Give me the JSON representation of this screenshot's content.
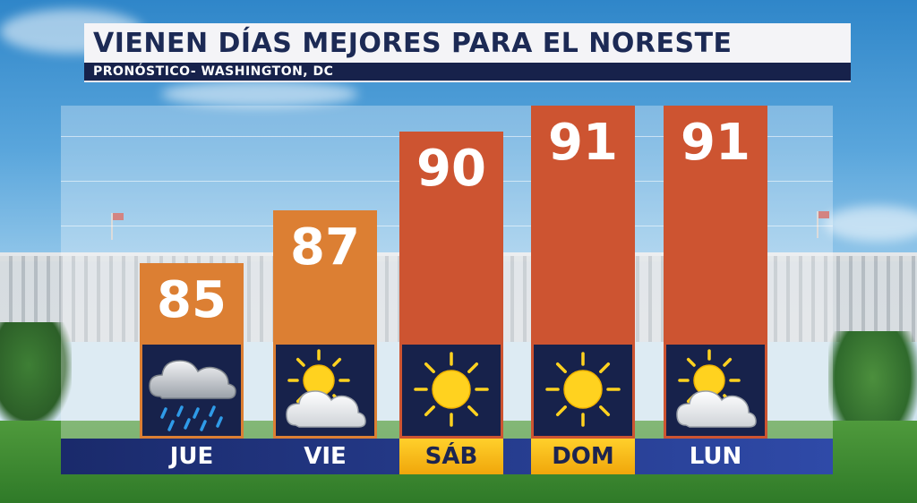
{
  "header": {
    "title": "VIENEN DÍAS MEJORES PARA EL NORESTE",
    "subtitle": "PRONÓSTICO- WASHINGTON, DC"
  },
  "colors": {
    "warm_bar": "#dc7f33",
    "hot_bar": "#cd5431",
    "navy": "#17224b",
    "weekend_highlight": "#f6b61a",
    "title_text": "#1c2a55"
  },
  "chart_data": {
    "type": "bar",
    "categories": [
      "JUE",
      "VIE",
      "SÁB",
      "DOM",
      "LUN"
    ],
    "values": [
      85,
      87,
      90,
      91,
      91
    ],
    "conditions": [
      "rain-cloud",
      "partly-sunny",
      "sunny",
      "sunny",
      "partly-sunny"
    ],
    "weekend": [
      false,
      false,
      true,
      true,
      false
    ]
  },
  "forecast": [
    {
      "day": "JUE",
      "temp": "85",
      "icon": "rain-cloud-icon",
      "weekend": false
    },
    {
      "day": "VIE",
      "temp": "87",
      "icon": "partly-sunny-icon",
      "weekend": false
    },
    {
      "day": "SÁB",
      "temp": "90",
      "icon": "sun-icon",
      "weekend": true
    },
    {
      "day": "DOM",
      "temp": "91",
      "icon": "sun-icon",
      "weekend": true
    },
    {
      "day": "LUN",
      "temp": "91",
      "icon": "partly-sunny-icon",
      "weekend": false
    }
  ]
}
